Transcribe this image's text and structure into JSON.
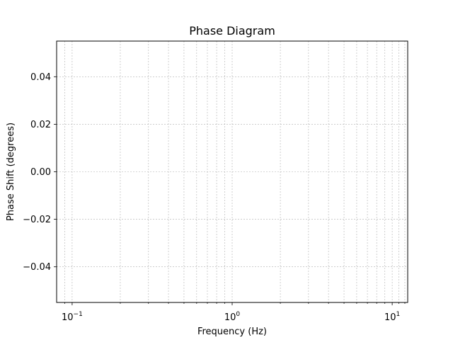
{
  "chart_data": {
    "type": "line",
    "title": "Phase Diagram",
    "xlabel": "Frequency (Hz)",
    "ylabel": "Phase Shift (degrees)",
    "x_scale": "log",
    "xlim": [
      0.08,
      12.5
    ],
    "ylim": [
      -0.055,
      0.055
    ],
    "x_major_ticks": [
      {
        "value": 0.1,
        "base": "10",
        "exp": "−1"
      },
      {
        "value": 1,
        "base": "10",
        "exp": "0"
      },
      {
        "value": 10,
        "base": "10",
        "exp": "1"
      }
    ],
    "x_minor_ticks": [
      0.09,
      0.2,
      0.3,
      0.4,
      0.5,
      0.6,
      0.7,
      0.8,
      0.9,
      2,
      3,
      4,
      5,
      6,
      7,
      8,
      9,
      11,
      12
    ],
    "y_ticks": [
      {
        "value": 0.04,
        "label": "0.04"
      },
      {
        "value": 0.02,
        "label": "0.02"
      },
      {
        "value": 0.0,
        "label": "0.00"
      },
      {
        "value": -0.02,
        "label": "−0.02"
      },
      {
        "value": -0.04,
        "label": "−0.04"
      }
    ],
    "grid": true,
    "series": [],
    "colors": {
      "grid": "#b0b0b0",
      "axis": "#000000"
    }
  }
}
